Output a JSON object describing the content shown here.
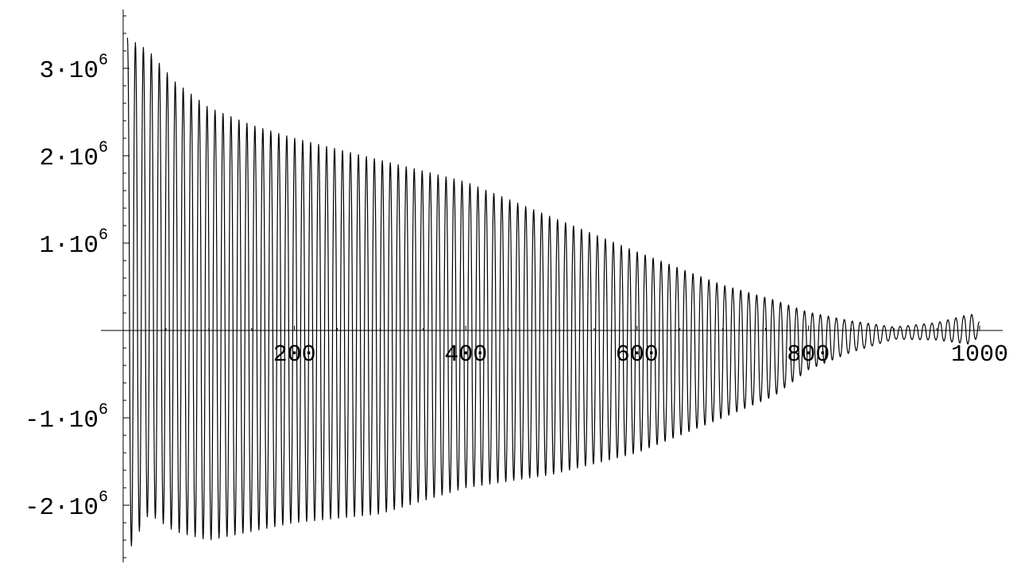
{
  "chart_data": {
    "type": "line",
    "title": "",
    "xlabel": "",
    "ylabel": "",
    "xlim": [
      0,
      1000
    ],
    "ylim": [
      -2600000,
      3600000
    ],
    "grid": false,
    "legend": "none",
    "line_color": "#000000",
    "axis_color": "#000000",
    "x_tick_labels": [
      {
        "value": 200,
        "label": "200"
      },
      {
        "value": 400,
        "label": "400"
      },
      {
        "value": 600,
        "label": "600"
      },
      {
        "value": 800,
        "label": "800"
      },
      {
        "value": 1000,
        "label": "1000"
      }
    ],
    "y_tick_labels": [
      {
        "value": 3000000,
        "mantissa": "3",
        "base": "10",
        "exponent": "6"
      },
      {
        "value": 2000000,
        "mantissa": "2",
        "base": "10",
        "exponent": "6"
      },
      {
        "value": 1000000,
        "mantissa": "1",
        "base": "10",
        "exponent": "6"
      },
      {
        "value": -1000000,
        "mantissa": "-1",
        "base": "10",
        "exponent": "6"
      },
      {
        "value": -2000000,
        "mantissa": "-2",
        "base": "10",
        "exponent": "6"
      }
    ],
    "series": [
      {
        "oscillation_period_x": 9.3,
        "envelope": {
          "x": [
            5,
            30,
            60,
            100,
            150,
            200,
            300,
            400,
            500,
            600,
            700,
            760,
            800,
            850,
            900,
            950,
            990,
            1000
          ],
          "ymax": [
            3350000,
            3200000,
            2850000,
            2550000,
            2350000,
            2200000,
            1950000,
            1700000,
            1300000,
            900000,
            520000,
            350000,
            210000,
            110000,
            40000,
            90000,
            190000,
            100000
          ],
          "ymin": [
            -2550000,
            -2100000,
            -2300000,
            -2400000,
            -2300000,
            -2200000,
            -2100000,
            -1800000,
            -1650000,
            -1400000,
            -1000000,
            -750000,
            -450000,
            -250000,
            -100000,
            -110000,
            -160000,
            -50000
          ]
        }
      }
    ]
  }
}
